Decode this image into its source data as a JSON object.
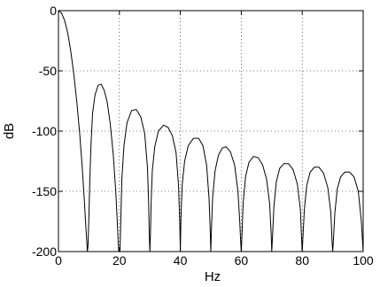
{
  "chart_data": {
    "type": "line",
    "title": "",
    "xlabel": "Hz",
    "ylabel": "dB",
    "xlim": [
      0,
      100
    ],
    "ylim": [
      -200,
      0
    ],
    "xticks": [
      0,
      20,
      40,
      60,
      80,
      100
    ],
    "yticks": [
      0,
      -50,
      -100,
      -150,
      -200
    ],
    "xtick_labels": [
      "0",
      "20",
      "40",
      "60",
      "80",
      "100"
    ],
    "ytick_labels": [
      "0",
      "-50",
      "-100",
      "-150",
      "-200"
    ],
    "grid": true,
    "grid_style": "dotted",
    "line_color": "#000000",
    "series": [
      {
        "x": [
          0,
          1,
          2,
          3,
          4,
          5,
          6,
          7,
          7.8,
          8.5,
          9,
          9.3,
          9.5,
          9.7,
          10,
          10.3,
          10.7,
          11.2,
          12,
          13,
          14,
          15,
          16,
          17,
          18,
          18.8,
          19.3,
          19.6,
          19.8,
          20,
          20.2,
          20.4,
          20.8,
          21.5,
          22.5,
          24,
          25.5,
          27,
          28.3,
          29.2,
          29.6,
          29.8,
          30,
          30.2,
          30.4,
          30.8,
          31.6,
          32.8,
          34.5,
          36,
          37.4,
          38.6,
          39.4,
          39.8,
          40,
          40.2,
          40.6,
          41.4,
          42.6,
          44.3,
          46,
          47.4,
          48.6,
          49.4,
          49.8,
          50,
          50.2,
          50.6,
          51.4,
          52.5,
          53.8,
          55,
          56.4,
          57.8,
          58.9,
          59.5,
          59.8,
          60,
          60.2,
          60.6,
          61.4,
          62.5,
          64,
          65.5,
          67,
          68.3,
          69.3,
          69.8,
          70,
          70.2,
          70.7,
          71.5,
          72.6,
          74,
          75.5,
          77,
          78.4,
          79.4,
          79.8,
          80,
          80.2,
          80.7,
          81.5,
          82.6,
          84,
          85.5,
          87,
          88.4,
          89.4,
          89.8,
          90,
          90.2,
          90.7,
          91.5,
          92.6,
          94,
          95.5,
          97,
          98.4,
          99.4,
          100
        ],
        "y": [
          0,
          -2,
          -8,
          -18,
          -33,
          -52,
          -75,
          -103,
          -130,
          -158,
          -180,
          -192,
          -200,
          -195,
          -170,
          -140,
          -110,
          -85,
          -70,
          -62,
          -61,
          -66,
          -76,
          -94,
          -120,
          -150,
          -175,
          -192,
          -200,
          -200,
          -200,
          -180,
          -140,
          -112,
          -93,
          -83,
          -82,
          -88,
          -102,
          -130,
          -160,
          -185,
          -200,
          -185,
          -160,
          -133,
          -113,
          -100,
          -95,
          -97,
          -104,
          -118,
          -145,
          -175,
          -200,
          -172,
          -145,
          -125,
          -112,
          -106,
          -106,
          -112,
          -128,
          -155,
          -182,
          -200,
          -182,
          -155,
          -133,
          -120,
          -114,
          -113,
          -117,
          -128,
          -150,
          -175,
          -192,
          -200,
          -188,
          -160,
          -138,
          -126,
          -121,
          -122,
          -128,
          -140,
          -160,
          -185,
          -200,
          -190,
          -163,
          -142,
          -131,
          -127,
          -127,
          -132,
          -144,
          -165,
          -190,
          -200,
          -190,
          -165,
          -145,
          -134,
          -130,
          -130,
          -135,
          -147,
          -168,
          -192,
          -200,
          -192,
          -168,
          -148,
          -138,
          -134,
          -134,
          -138,
          -150,
          -175,
          -200
        ]
      }
    ]
  }
}
